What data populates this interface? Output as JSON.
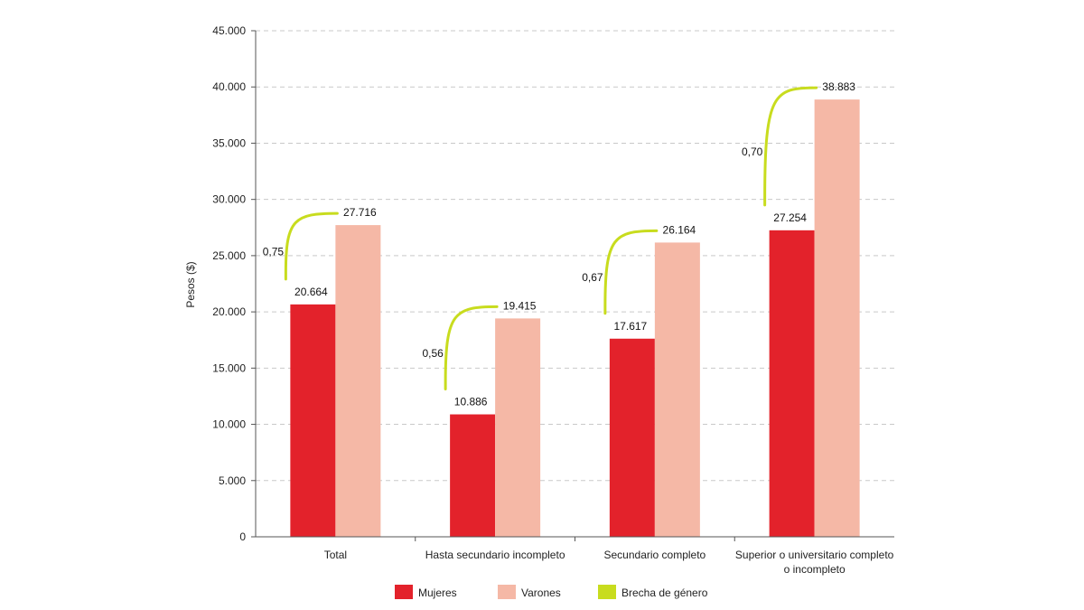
{
  "chart_data": {
    "type": "bar",
    "title": "",
    "xlabel": "",
    "ylabel": "Pesos ($)",
    "ylim": [
      0,
      45000
    ],
    "yticks": [
      "0",
      "5.000",
      "10.000",
      "15.000",
      "20.000",
      "25.000",
      "30.000",
      "35.000",
      "40.000",
      "45.000"
    ],
    "grid": true,
    "categories": [
      [
        "Total"
      ],
      [
        "Hasta secundario incompleto"
      ],
      [
        "Secundario completo"
      ],
      [
        "Superior o universitario completo",
        "o incompleto"
      ]
    ],
    "series": [
      {
        "name": "Mujeres",
        "color": "#e3222b",
        "values": [
          20664,
          10886,
          17617,
          27254
        ],
        "labels": [
          "20.664",
          "10.886",
          "17.617",
          "27.254"
        ]
      },
      {
        "name": "Varones",
        "color": "#f5b8a6",
        "values": [
          27716,
          19415,
          26164,
          38883
        ],
        "labels": [
          "27.716",
          "19.415",
          "26.164",
          "38.883"
        ]
      }
    ],
    "gap": {
      "name": "Brecha de género",
      "color": "#c8dc1e",
      "labels": [
        "0,75",
        "0,56",
        "0,67",
        "0,70"
      ]
    },
    "legend": "bottom"
  }
}
